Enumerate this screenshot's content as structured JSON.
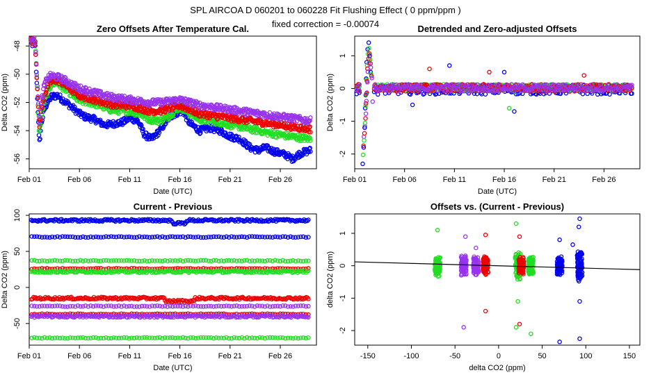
{
  "header": {
    "title": "SPL   AIRCOA D   060201 to 060228   Fit Flushing Effect ( 0 ppm/ppm )",
    "subtitle": "fixed correction = -0.00074"
  },
  "colors": {
    "blue": "#0000ee",
    "red": "#ee0000",
    "green": "#22dd22",
    "purple": "#9933ee",
    "line": "#000000"
  },
  "chart_data": [
    {
      "id": "p1",
      "type": "scatter",
      "title": "Zero Offsets After Temperature Cal.",
      "xlabel": "Date (UTC)",
      "ylabel": "Delta CO2 (ppm)",
      "xlim": [
        0,
        28.6
      ],
      "ylim": [
        -56.7,
        -47.3
      ],
      "xticks": [
        {
          "v": 0,
          "label": "Feb 01"
        },
        {
          "v": 5,
          "label": "Feb 06"
        },
        {
          "v": 10,
          "label": "Feb 11"
        },
        {
          "v": 15,
          "label": "Feb 16"
        },
        {
          "v": 20,
          "label": "Feb 21"
        },
        {
          "v": 25,
          "label": "Feb 26"
        }
      ],
      "yticks": [
        {
          "v": -48,
          "label": "-48"
        },
        {
          "v": -50,
          "label": "-50"
        },
        {
          "v": -52,
          "label": "-52"
        },
        {
          "v": -54,
          "label": "-54"
        },
        {
          "v": -56,
          "label": "-56"
        }
      ],
      "series": [
        {
          "name": "blue",
          "color": "blue",
          "x": [
            0,
            0.6,
            1.0,
            1.2,
            1.5,
            1.8,
            2.2,
            2.8,
            3.5,
            4.2,
            5.0,
            5.5,
            6.5,
            7.5,
            8.5,
            9.3,
            10.0,
            10.8,
            11.5,
            12.2,
            13.0,
            14.0,
            14.8,
            15.3,
            16.0,
            17.0,
            18.0,
            19.0,
            20.0,
            21.0,
            22.0,
            22.8,
            23.5,
            24.5,
            25.5,
            26.2,
            27.0,
            28.0
          ],
          "y": [
            -47.8,
            -47.9,
            -55.0,
            -53.5,
            -52.5,
            -52.0,
            -51.6,
            -51.5,
            -51.9,
            -52.3,
            -52.8,
            -53.0,
            -53.2,
            -53.6,
            -53.5,
            -53.4,
            -53.1,
            -53.3,
            -54.3,
            -54.6,
            -54.0,
            -53.0,
            -52.7,
            -52.6,
            -53.5,
            -54.0,
            -53.8,
            -54.0,
            -54.4,
            -54.6,
            -55.2,
            -55.4,
            -55.2,
            -55.5,
            -55.7,
            -56.0,
            -55.6,
            -55.4
          ]
        },
        {
          "name": "green",
          "color": "green",
          "x": [
            0,
            0.6,
            1.0,
            1.2,
            1.5,
            1.8,
            2.2,
            2.8,
            3.5,
            4.2,
            5.0,
            6.0,
            7.0,
            8.0,
            9.0,
            10.0,
            11.0,
            12.0,
            13.0,
            14.0,
            15.0,
            16.0,
            17.0,
            18.0,
            19.0,
            20.0,
            21.0,
            22.0,
            23.0,
            24.0,
            25.0,
            26.0,
            27.0,
            28.0
          ],
          "y": [
            -47.6,
            -47.7,
            -54.3,
            -53.0,
            -52.0,
            -51.3,
            -50.7,
            -50.6,
            -51.0,
            -51.4,
            -51.9,
            -52.0,
            -52.2,
            -52.5,
            -52.6,
            -52.6,
            -52.8,
            -53.2,
            -53.3,
            -52.9,
            -52.3,
            -52.8,
            -53.2,
            -53.3,
            -53.4,
            -53.6,
            -53.7,
            -53.9,
            -54.0,
            -54.2,
            -54.3,
            -54.4,
            -54.5,
            -54.6
          ]
        },
        {
          "name": "red",
          "color": "red",
          "x": [
            0,
            0.6,
            1.0,
            1.2,
            1.5,
            1.8,
            2.2,
            2.8,
            3.5,
            4.2,
            5.0,
            6.0,
            7.0,
            8.0,
            9.0,
            10.0,
            11.0,
            12.0,
            13.0,
            14.0,
            15.0,
            16.0,
            17.0,
            18.0,
            19.0,
            20.0,
            21.0,
            22.0,
            23.0,
            24.0,
            25.0,
            26.0,
            27.0,
            28.0
          ],
          "y": [
            -47.6,
            -47.7,
            -53.8,
            -52.6,
            -51.5,
            -50.9,
            -50.5,
            -50.4,
            -50.7,
            -51.1,
            -51.5,
            -51.7,
            -51.9,
            -52.1,
            -52.2,
            -52.2,
            -52.4,
            -52.6,
            -52.6,
            -52.4,
            -52.2,
            -52.5,
            -52.8,
            -52.9,
            -53.0,
            -53.1,
            -53.2,
            -53.3,
            -53.4,
            -53.5,
            -53.6,
            -53.7,
            -53.8,
            -53.9
          ]
        },
        {
          "name": "purple",
          "color": "purple",
          "x": [
            0,
            0.6,
            1.0,
            1.2,
            1.5,
            1.8,
            2.2,
            2.8,
            3.5,
            4.2,
            5.0,
            6.0,
            7.0,
            8.0,
            9.0,
            10.0,
            11.0,
            12.0,
            13.0,
            14.0,
            15.0,
            16.0,
            17.0,
            18.0,
            19.0,
            20.0,
            21.0,
            22.0,
            23.0,
            24.0,
            25.0,
            26.0,
            27.0,
            28.0
          ],
          "y": [
            -47.5,
            -47.6,
            -53.5,
            -52.0,
            -50.8,
            -50.3,
            -50.1,
            -50.2,
            -50.4,
            -50.7,
            -51.0,
            -51.2,
            -51.4,
            -51.6,
            -51.7,
            -51.8,
            -51.9,
            -52.0,
            -52.0,
            -51.9,
            -51.8,
            -52.0,
            -52.2,
            -52.3,
            -52.4,
            -52.5,
            -52.6,
            -52.7,
            -52.8,
            -52.9,
            -53.0,
            -53.1,
            -53.2,
            -53.3
          ]
        }
      ]
    },
    {
      "id": "p2",
      "type": "scatter",
      "title": "Detrended and Zero-adjusted Offsets",
      "xlabel": "Date (UTC)",
      "ylabel": "Delta CO2 (ppm)",
      "xlim": [
        0,
        28.6
      ],
      "ylim": [
        -2.45,
        1.6
      ],
      "xticks": [
        {
          "v": 0,
          "label": "Feb 01"
        },
        {
          "v": 5,
          "label": "Feb 06"
        },
        {
          "v": 10,
          "label": "Feb 11"
        },
        {
          "v": 15,
          "label": "Feb 16"
        },
        {
          "v": 20,
          "label": "Feb 21"
        },
        {
          "v": 25,
          "label": "Feb 26"
        }
      ],
      "yticks": [
        {
          "v": 1,
          "label": "1"
        },
        {
          "v": 0,
          "label": "0"
        },
        {
          "v": -1,
          "label": "-1"
        },
        {
          "v": -2,
          "label": "-2"
        }
      ],
      "spike": {
        "x": [
          0.8,
          0.9,
          1.0,
          1.05,
          1.1,
          1.15,
          1.2,
          1.3,
          1.4,
          1.5,
          1.6
        ],
        "y": [
          -2.3,
          -1.8,
          -1.2,
          -0.6,
          -0.2,
          0.3,
          0.8,
          1.2,
          1.4,
          1.0,
          0.5
        ]
      },
      "outliers": [
        {
          "c": "blue",
          "x": 9.5,
          "y": 0.7
        },
        {
          "c": "blue",
          "x": 15.0,
          "y": 0.5
        },
        {
          "c": "blue",
          "x": 16.0,
          "y": -0.7
        },
        {
          "c": "red",
          "x": 7.5,
          "y": 0.6
        },
        {
          "c": "red",
          "x": 23.0,
          "y": 0.4
        },
        {
          "c": "red",
          "x": 13.5,
          "y": 0.5
        },
        {
          "c": "green",
          "x": 15.5,
          "y": -0.6
        },
        {
          "c": "blue",
          "x": 5.8,
          "y": -0.5
        },
        {
          "c": "purple",
          "x": 1.8,
          "y": -0.4
        }
      ],
      "series_colors": [
        "blue",
        "green",
        "red",
        "purple"
      ]
    },
    {
      "id": "p3",
      "type": "scatter",
      "title": "Current - Previous",
      "xlabel": "Date (UTC)",
      "ylabel": "Delta CO2 (ppm)",
      "xlim": [
        0,
        28.6
      ],
      "ylim": [
        -80,
        102
      ],
      "xticks": [
        {
          "v": 0,
          "label": "Feb 01"
        },
        {
          "v": 5,
          "label": "Feb 06"
        },
        {
          "v": 10,
          "label": "Feb 11"
        },
        {
          "v": 15,
          "label": "Feb 16"
        },
        {
          "v": 20,
          "label": "Feb 21"
        },
        {
          "v": 25,
          "label": "Feb 26"
        }
      ],
      "yticks": [
        {
          "v": 100,
          "label": "100"
        },
        {
          "v": 50,
          "label": "50"
        },
        {
          "v": 0,
          "label": "0"
        },
        {
          "v": -50,
          "label": "-50"
        }
      ],
      "bands": [
        {
          "color": "blue",
          "y": 93,
          "dense": true
        },
        {
          "color": "blue",
          "y": 70,
          "dense": false
        },
        {
          "color": "green",
          "y": 37,
          "dense": false
        },
        {
          "color": "red",
          "y": 26,
          "dense": false
        },
        {
          "color": "green",
          "y": 22,
          "dense": true
        },
        {
          "color": "red",
          "y": -15,
          "dense": true
        },
        {
          "color": "purple",
          "y": -26,
          "dense": false
        },
        {
          "color": "red",
          "y": -37,
          "dense": false
        },
        {
          "color": "purple",
          "y": -40,
          "dense": true
        },
        {
          "color": "green",
          "y": -70,
          "dense": false
        }
      ]
    },
    {
      "id": "p4",
      "type": "scatter",
      "title": "Offsets vs. (Current - Previous)",
      "xlabel": "delta CO2 (ppm)",
      "ylabel": "delta CO2 (ppm)",
      "xlim": [
        -165,
        162
      ],
      "ylim": [
        -2.45,
        1.6
      ],
      "xticks": [
        {
          "v": -150,
          "label": "-150"
        },
        {
          "v": -100,
          "label": "-100"
        },
        {
          "v": -50,
          "label": "-50"
        },
        {
          "v": 0,
          "label": "0"
        },
        {
          "v": 50,
          "label": "50"
        },
        {
          "v": 100,
          "label": "100"
        },
        {
          "v": 150,
          "label": "150"
        }
      ],
      "yticks": [
        {
          "v": 1,
          "label": "1"
        },
        {
          "v": 0,
          "label": "0"
        },
        {
          "v": -1,
          "label": "-1"
        },
        {
          "v": -2,
          "label": "-2"
        }
      ],
      "fit_line": {
        "x": [
          -165,
          162
        ],
        "y": [
          0.12,
          -0.12
        ]
      },
      "clusters": [
        {
          "color": "green",
          "x": -70,
          "spread": 0.35
        },
        {
          "color": "purple",
          "x": -40,
          "spread": 0.35
        },
        {
          "color": "purple",
          "x": -26,
          "spread": 0.3
        },
        {
          "color": "red",
          "x": -15,
          "spread": 0.3
        },
        {
          "color": "green",
          "x": 22,
          "spread": 0.45
        },
        {
          "color": "red",
          "x": 26,
          "spread": 0.3
        },
        {
          "color": "green",
          "x": 37,
          "spread": 0.3
        },
        {
          "color": "blue",
          "x": 70,
          "spread": 0.3
        },
        {
          "color": "blue",
          "x": 93,
          "spread": 0.55
        }
      ],
      "outliers": [
        {
          "c": "green",
          "x": -70,
          "y": 1.1
        },
        {
          "c": "purple",
          "x": -38,
          "y": 0.9
        },
        {
          "c": "purple",
          "x": -40,
          "y": -1.9
        },
        {
          "c": "purple",
          "x": -26,
          "y": 0.55
        },
        {
          "c": "red",
          "x": -15,
          "y": 0.95
        },
        {
          "c": "red",
          "x": -15,
          "y": -1.4
        },
        {
          "c": "green",
          "x": 20,
          "y": 1.3
        },
        {
          "c": "green",
          "x": 22,
          "y": -1.1
        },
        {
          "c": "green",
          "x": 20,
          "y": -1.9
        },
        {
          "c": "red",
          "x": 24,
          "y": 0.9
        },
        {
          "c": "red",
          "x": 24,
          "y": -1.8
        },
        {
          "c": "green",
          "x": 37,
          "y": -2.1
        },
        {
          "c": "blue",
          "x": 70,
          "y": 0.8
        },
        {
          "c": "blue",
          "x": 70,
          "y": -2.35
        },
        {
          "c": "blue",
          "x": 93,
          "y": 1.45
        },
        {
          "c": "blue",
          "x": 92,
          "y": 1.2
        },
        {
          "c": "blue",
          "x": 93,
          "y": -1.1
        },
        {
          "c": "blue",
          "x": 93,
          "y": -2.25
        },
        {
          "c": "blue",
          "x": 85,
          "y": 0.65
        }
      ]
    }
  ]
}
